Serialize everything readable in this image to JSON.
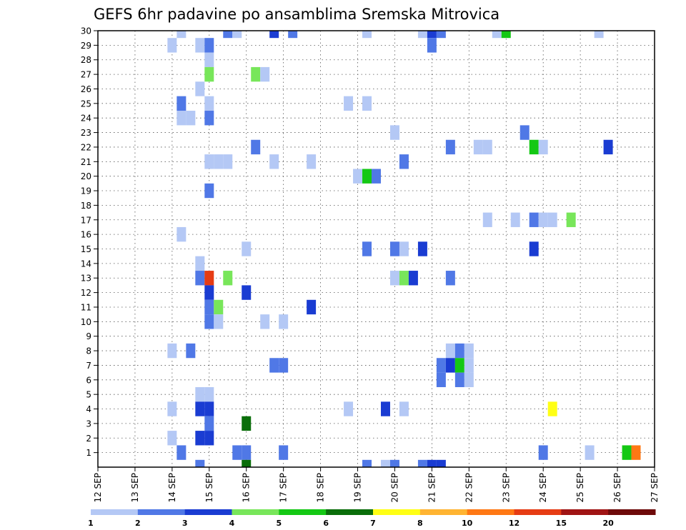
{
  "chart_data": {
    "type": "heatmap",
    "title": "GEFS 6hr padavine po ansamblima Sremska Mitrovica",
    "xlabel": "",
    "ylabel": "",
    "x_start": "12 SEP",
    "x_end": "27 SEP",
    "x_ticks": [
      "12 SEP",
      "13 SEP",
      "14 SEP",
      "15 SEP",
      "16 SEP",
      "17 SEP",
      "18 SEP",
      "19 SEP",
      "20 SEP",
      "21 SEP",
      "22 SEP",
      "23 SEP",
      "24 SEP",
      "25 SEP",
      "26 SEP",
      "27 SEP"
    ],
    "y_ticks": [
      "1",
      "2",
      "3",
      "4",
      "5",
      "6",
      "7",
      "8",
      "9",
      "10",
      "11",
      "12",
      "13",
      "14",
      "15",
      "16",
      "17",
      "18",
      "19",
      "20",
      "21",
      "22",
      "23",
      "24",
      "25",
      "26",
      "27",
      "28",
      "29",
      "30"
    ],
    "ylim": [
      0,
      30
    ],
    "grid": true,
    "colorbar": {
      "labels": [
        "1",
        "2",
        "3",
        "4",
        "5",
        "6",
        "7",
        "8",
        "10",
        "12",
        "15",
        "20"
      ],
      "colors": [
        "#b4c8f5",
        "#5078e6",
        "#1a3cd2",
        "#78e65a",
        "#14c814",
        "#0a6e0a",
        "#ffff14",
        "#ffb432",
        "#ff7814",
        "#e63c14",
        "#a01414",
        "#6e0a0a"
      ]
    },
    "cells": [
      {
        "member": 30,
        "day": 14.25,
        "level": 1
      },
      {
        "member": 30,
        "day": 15.5,
        "level": 2
      },
      {
        "member": 30,
        "day": 15.75,
        "level": 1
      },
      {
        "member": 30,
        "day": 16.75,
        "level": 3
      },
      {
        "member": 30,
        "day": 17.25,
        "level": 2
      },
      {
        "member": 30,
        "day": 19.25,
        "level": 1
      },
      {
        "member": 30,
        "day": 20.75,
        "level": 1
      },
      {
        "member": 30,
        "day": 21.0,
        "level": 3
      },
      {
        "member": 30,
        "day": 21.25,
        "level": 2
      },
      {
        "member": 30,
        "day": 22.75,
        "level": 1
      },
      {
        "member": 30,
        "day": 23.0,
        "level": 5
      },
      {
        "member": 30,
        "day": 25.5,
        "level": 1
      },
      {
        "member": 29,
        "day": 14.0,
        "level": 1
      },
      {
        "member": 29,
        "day": 14.75,
        "level": 1
      },
      {
        "member": 29,
        "day": 15.0,
        "level": 2
      },
      {
        "member": 29,
        "day": 21.0,
        "level": 2
      },
      {
        "member": 28,
        "day": 15.0,
        "level": 1
      },
      {
        "member": 27,
        "day": 15.0,
        "level": 4
      },
      {
        "member": 27,
        "day": 16.25,
        "level": 4
      },
      {
        "member": 27,
        "day": 16.5,
        "level": 1
      },
      {
        "member": 26,
        "day": 14.75,
        "level": 1
      },
      {
        "member": 25,
        "day": 14.25,
        "level": 2
      },
      {
        "member": 25,
        "day": 15.0,
        "level": 1
      },
      {
        "member": 25,
        "day": 18.75,
        "level": 1
      },
      {
        "member": 25,
        "day": 19.25,
        "level": 1
      },
      {
        "member": 24,
        "day": 14.25,
        "level": 1
      },
      {
        "member": 24,
        "day": 14.5,
        "level": 1
      },
      {
        "member": 24,
        "day": 15.0,
        "level": 2
      },
      {
        "member": 23,
        "day": 20.0,
        "level": 1
      },
      {
        "member": 23,
        "day": 23.5,
        "level": 2
      },
      {
        "member": 22,
        "day": 16.25,
        "level": 2
      },
      {
        "member": 22,
        "day": 21.5,
        "level": 2
      },
      {
        "member": 22,
        "day": 22.25,
        "level": 1
      },
      {
        "member": 22,
        "day": 22.5,
        "level": 1
      },
      {
        "member": 22,
        "day": 23.75,
        "level": 5
      },
      {
        "member": 22,
        "day": 24.0,
        "level": 1
      },
      {
        "member": 22,
        "day": 25.75,
        "level": 3
      },
      {
        "member": 21,
        "day": 15.0,
        "level": 1
      },
      {
        "member": 21,
        "day": 15.25,
        "level": 1
      },
      {
        "member": 21,
        "day": 15.5,
        "level": 1
      },
      {
        "member": 21,
        "day": 16.75,
        "level": 1
      },
      {
        "member": 21,
        "day": 17.75,
        "level": 1
      },
      {
        "member": 21,
        "day": 20.25,
        "level": 2
      },
      {
        "member": 20,
        "day": 19.0,
        "level": 1
      },
      {
        "member": 20,
        "day": 19.25,
        "level": 5
      },
      {
        "member": 20,
        "day": 19.5,
        "level": 2
      },
      {
        "member": 19,
        "day": 15.0,
        "level": 2
      },
      {
        "member": 17,
        "day": 22.5,
        "level": 1
      },
      {
        "member": 17,
        "day": 23.25,
        "level": 1
      },
      {
        "member": 17,
        "day": 23.75,
        "level": 2
      },
      {
        "member": 17,
        "day": 24.0,
        "level": 1
      },
      {
        "member": 17,
        "day": 24.25,
        "level": 1
      },
      {
        "member": 17,
        "day": 24.75,
        "level": 4
      },
      {
        "member": 16,
        "day": 14.25,
        "level": 1
      },
      {
        "member": 15,
        "day": 16.0,
        "level": 1
      },
      {
        "member": 15,
        "day": 19.25,
        "level": 2
      },
      {
        "member": 15,
        "day": 20.0,
        "level": 2
      },
      {
        "member": 15,
        "day": 20.25,
        "level": 1
      },
      {
        "member": 15,
        "day": 20.75,
        "level": 3
      },
      {
        "member": 15,
        "day": 23.75,
        "level": 3
      },
      {
        "member": 14,
        "day": 14.75,
        "level": 1
      },
      {
        "member": 13,
        "day": 14.75,
        "level": 2
      },
      {
        "member": 13,
        "day": 15.0,
        "level": 10
      },
      {
        "member": 13,
        "day": 15.5,
        "level": 4
      },
      {
        "member": 13,
        "day": 20.0,
        "level": 1
      },
      {
        "member": 13,
        "day": 20.25,
        "level": 4
      },
      {
        "member": 13,
        "day": 20.5,
        "level": 3
      },
      {
        "member": 13,
        "day": 21.5,
        "level": 2
      },
      {
        "member": 12,
        "day": 15.0,
        "level": 3
      },
      {
        "member": 12,
        "day": 16.0,
        "level": 3
      },
      {
        "member": 11,
        "day": 15.0,
        "level": 2
      },
      {
        "member": 11,
        "day": 15.25,
        "level": 4
      },
      {
        "member": 11,
        "day": 17.75,
        "level": 3
      },
      {
        "member": 10,
        "day": 15.0,
        "level": 2
      },
      {
        "member": 10,
        "day": 15.25,
        "level": 1
      },
      {
        "member": 10,
        "day": 16.5,
        "level": 1
      },
      {
        "member": 10,
        "day": 17.0,
        "level": 1
      },
      {
        "member": 8,
        "day": 14.0,
        "level": 1
      },
      {
        "member": 8,
        "day": 14.5,
        "level": 2
      },
      {
        "member": 8,
        "day": 21.5,
        "level": 1
      },
      {
        "member": 8,
        "day": 21.75,
        "level": 2
      },
      {
        "member": 8,
        "day": 22.0,
        "level": 1
      },
      {
        "member": 7,
        "day": 16.75,
        "level": 2
      },
      {
        "member": 7,
        "day": 17.0,
        "level": 2
      },
      {
        "member": 7,
        "day": 21.25,
        "level": 2
      },
      {
        "member": 7,
        "day": 21.5,
        "level": 3
      },
      {
        "member": 7,
        "day": 21.75,
        "level": 5
      },
      {
        "member": 7,
        "day": 22.0,
        "level": 1
      },
      {
        "member": 6,
        "day": 21.25,
        "level": 2
      },
      {
        "member": 6,
        "day": 21.75,
        "level": 2
      },
      {
        "member": 6,
        "day": 22.0,
        "level": 1
      },
      {
        "member": 5,
        "day": 14.75,
        "level": 1
      },
      {
        "member": 5,
        "day": 15.0,
        "level": 1
      },
      {
        "member": 4,
        "day": 14.0,
        "level": 1
      },
      {
        "member": 4,
        "day": 14.75,
        "level": 3
      },
      {
        "member": 4,
        "day": 15.0,
        "level": 3
      },
      {
        "member": 4,
        "day": 18.75,
        "level": 1
      },
      {
        "member": 4,
        "day": 19.75,
        "level": 3
      },
      {
        "member": 4,
        "day": 20.25,
        "level": 1
      },
      {
        "member": 4,
        "day": 24.25,
        "level": 7
      },
      {
        "member": 3,
        "day": 15.0,
        "level": 2
      },
      {
        "member": 3,
        "day": 16.0,
        "level": 6
      },
      {
        "member": 2,
        "day": 14.0,
        "level": 1
      },
      {
        "member": 2,
        "day": 14.75,
        "level": 3
      },
      {
        "member": 2,
        "day": 15.0,
        "level": 3
      },
      {
        "member": 1,
        "day": 14.25,
        "level": 2
      },
      {
        "member": 1,
        "day": 15.75,
        "level": 2
      },
      {
        "member": 1,
        "day": 16.0,
        "level": 2
      },
      {
        "member": 1,
        "day": 17.0,
        "level": 2
      },
      {
        "member": 1,
        "day": 24.0,
        "level": 2
      },
      {
        "member": 1,
        "day": 25.25,
        "level": 1
      },
      {
        "member": 1,
        "day": 26.25,
        "level": 5
      },
      {
        "member": 1,
        "day": 26.5,
        "level": 9
      },
      {
        "member": 0,
        "day": 14.75,
        "level": 2
      },
      {
        "member": 0,
        "day": 16.0,
        "level": 6
      },
      {
        "member": 0,
        "day": 19.25,
        "level": 2
      },
      {
        "member": 0,
        "day": 19.75,
        "level": 1
      },
      {
        "member": 0,
        "day": 20.0,
        "level": 2
      },
      {
        "member": 0,
        "day": 20.75,
        "level": 2
      },
      {
        "member": 0,
        "day": 21.0,
        "level": 3
      },
      {
        "member": 0,
        "day": 21.25,
        "level": 3
      }
    ]
  }
}
